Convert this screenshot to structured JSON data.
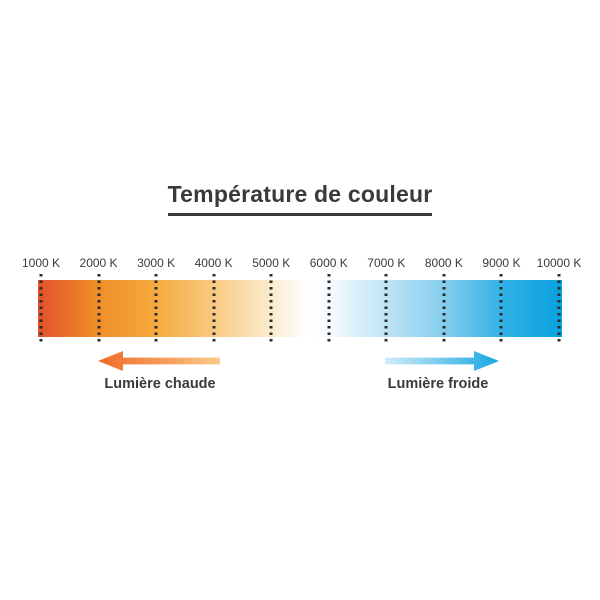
{
  "title": "Température de couleur",
  "scale": {
    "unit": "K",
    "min_kelvin": 1000,
    "max_kelvin": 10000,
    "tick_labels": [
      "1000 K",
      "2000 K",
      "3000 K",
      "4000 K",
      "5000 K",
      "6000 K",
      "7000 K",
      "8000 K",
      "9000 K",
      "10000 K"
    ]
  },
  "legend": {
    "warm_label": "Lumière chaude",
    "cool_label": "Lumière froide"
  },
  "colors": {
    "text": "#3a3a3a",
    "tick_dot": "#2b2b2b",
    "warm_arrow": {
      "head": "#ef6b26",
      "tail": "#fbc888"
    },
    "cool_arrow": {
      "head": "#17a6e2",
      "tail": "#d3ecf9"
    },
    "gradient_stops": [
      {
        "kelvin": 1000,
        "color": "#e2512b"
      },
      {
        "kelvin": 2000,
        "color": "#ef8d27"
      },
      {
        "kelvin": 3000,
        "color": "#f6a93e"
      },
      {
        "kelvin": 4000,
        "color": "#f9c97f"
      },
      {
        "kelvin": 5000,
        "color": "#faeccd"
      },
      {
        "kelvin": 5600,
        "color": "#ffffff"
      },
      {
        "kelvin": 6000,
        "color": "#f7fbfe"
      },
      {
        "kelvin": 7000,
        "color": "#bee3f4"
      },
      {
        "kelvin": 8000,
        "color": "#82cdee"
      },
      {
        "kelvin": 9000,
        "color": "#2fb0e5"
      },
      {
        "kelvin": 10000,
        "color": "#0aa1e0"
      }
    ]
  }
}
